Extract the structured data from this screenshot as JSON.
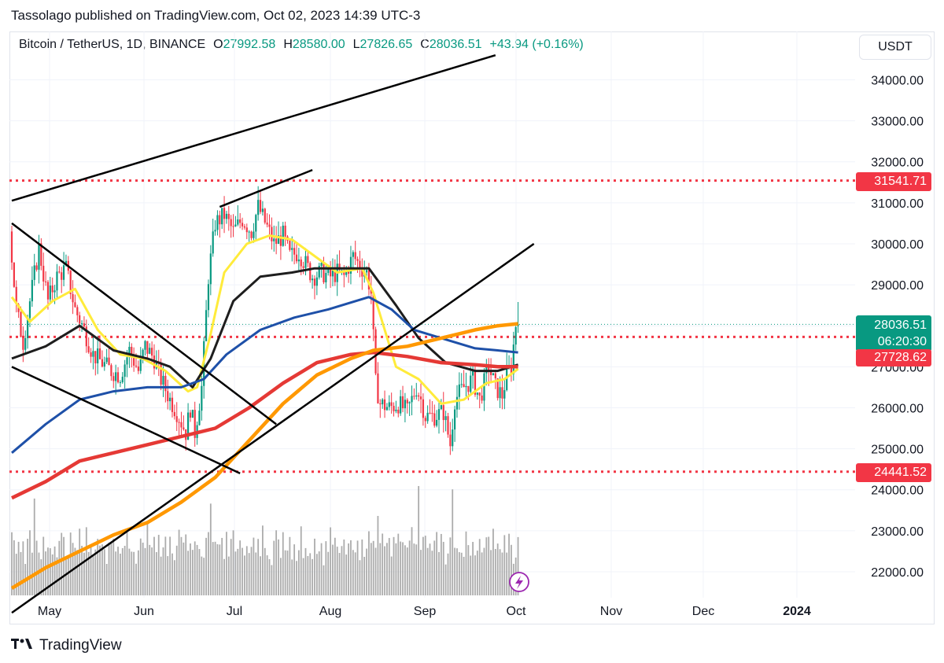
{
  "header": {
    "published_text": "Tassolago published on TradingView.com, Oct 02, 2023 14:39 UTC-3"
  },
  "legend": {
    "symbol": "Bitcoin / TetherUS, 1D, BINANCE",
    "o_label": "O",
    "o_value": "27992.58",
    "h_label": "H",
    "h_value": "28580.00",
    "l_label": "L",
    "l_value": "27826.65",
    "c_label": "C",
    "c_value": "28036.51",
    "change": "+43.94 (+0.16%)"
  },
  "currency_button": "USDT",
  "price_tags": {
    "resistance_upper": "31541.71",
    "last_price": "28036.51",
    "countdown": "06:20:30",
    "level_mid": "27728.62",
    "support_lower": "24441.52"
  },
  "footer": {
    "brand": "TradingView"
  },
  "colors": {
    "up": "#089981",
    "down": "#f23645",
    "volume": "#9e9e9e",
    "ma_yellow": "#ffeb3b",
    "ma_black": "#1e1e1e",
    "ma_blue": "#1e50a8",
    "ma_red": "#e53935",
    "ma_orange": "#ff9800",
    "level_line": "#f23645"
  },
  "chart_data": {
    "type": "candlestick",
    "symbol": "Bitcoin / TetherUS",
    "timeframe": "1D",
    "exchange": "BINANCE",
    "y_ticks": [
      22000,
      23000,
      24000,
      25000,
      26000,
      27000,
      28000,
      29000,
      30000,
      31000,
      32000,
      33000,
      34000
    ],
    "y_tick_labels": [
      "22000.00",
      "23000.00",
      "24000.00",
      "25000.00",
      "26000.00",
      "27000.00",
      "28000.00",
      "29000.00",
      "30000.00",
      "31000.00",
      "32000.00",
      "33000.00",
      "34000.00"
    ],
    "x_tick_labels": [
      "May",
      "Jun",
      "Jul",
      "Aug",
      "Sep",
      "Oct",
      "Nov",
      "Dec",
      "2024"
    ],
    "horizontal_levels": [
      31541.71,
      27728.62,
      24441.52
    ],
    "last_price": 28036.51,
    "price_path": [
      [
        0,
        30300
      ],
      [
        3,
        28400
      ],
      [
        6,
        27600
      ],
      [
        9,
        28600
      ],
      [
        13,
        29900
      ],
      [
        17,
        28600
      ],
      [
        21,
        29200
      ],
      [
        25,
        29400
      ],
      [
        29,
        28400
      ],
      [
        33,
        27900
      ],
      [
        37,
        27300
      ],
      [
        41,
        27100
      ],
      [
        45,
        26900
      ],
      [
        49,
        26800
      ],
      [
        53,
        27400
      ],
      [
        57,
        26900
      ],
      [
        60,
        27500
      ],
      [
        64,
        27200
      ],
      [
        67,
        26700
      ],
      [
        71,
        26200
      ],
      [
        74,
        25900
      ],
      [
        78,
        25400
      ],
      [
        80,
        26000
      ],
      [
        82,
        25400
      ],
      [
        85,
        26500
      ],
      [
        88,
        29200
      ],
      [
        91,
        30500
      ],
      [
        95,
        30700
      ],
      [
        99,
        30300
      ],
      [
        103,
        30600
      ],
      [
        107,
        30300
      ],
      [
        110,
        30900
      ],
      [
        114,
        30400
      ],
      [
        117,
        30000
      ],
      [
        121,
        30200
      ],
      [
        124,
        29700
      ],
      [
        128,
        29800
      ],
      [
        131,
        29500
      ],
      [
        134,
        29200
      ],
      [
        138,
        29300
      ],
      [
        142,
        29200
      ],
      [
        145,
        29300
      ],
      [
        148,
        29200
      ],
      [
        152,
        29700
      ],
      [
        156,
        29400
      ],
      [
        158,
        29300
      ],
      [
        160,
        28800
      ],
      [
        162,
        26600
      ],
      [
        164,
        26100
      ],
      [
        168,
        26000
      ],
      [
        172,
        26100
      ],
      [
        176,
        25900
      ],
      [
        180,
        26500
      ],
      [
        182,
        26200
      ],
      [
        184,
        25800
      ],
      [
        188,
        25800
      ],
      [
        192,
        25900
      ],
      [
        195,
        25100
      ],
      [
        197,
        26200
      ],
      [
        201,
        26500
      ],
      [
        205,
        26700
      ],
      [
        208,
        26200
      ],
      [
        212,
        27000
      ],
      [
        215,
        26500
      ],
      [
        218,
        26300
      ],
      [
        220,
        26800
      ],
      [
        222,
        27000
      ],
      [
        224,
        28036
      ]
    ],
    "volume_pattern": [
      8,
      6,
      5,
      7,
      4,
      6,
      3,
      5,
      8,
      4,
      6,
      5,
      3,
      4,
      7,
      5,
      4,
      6,
      3,
      5,
      4,
      8,
      6,
      5,
      4,
      3,
      6,
      7,
      5,
      4
    ],
    "moving_averages": [
      {
        "color": "yellow",
        "points": [
          [
            0,
            28700
          ],
          [
            8,
            28100
          ],
          [
            18,
            28600
          ],
          [
            28,
            28900
          ],
          [
            38,
            27900
          ],
          [
            48,
            27300
          ],
          [
            58,
            27200
          ],
          [
            68,
            26900
          ],
          [
            78,
            26400
          ],
          [
            82,
            26500
          ],
          [
            88,
            27800
          ],
          [
            94,
            29300
          ],
          [
            104,
            30000
          ],
          [
            114,
            30200
          ],
          [
            124,
            30100
          ],
          [
            134,
            29700
          ],
          [
            144,
            29300
          ],
          [
            155,
            29400
          ],
          [
            160,
            28800
          ],
          [
            170,
            27000
          ],
          [
            180,
            26700
          ],
          [
            190,
            26100
          ],
          [
            200,
            26200
          ],
          [
            210,
            26600
          ],
          [
            218,
            26700
          ],
          [
            224,
            26950
          ]
        ]
      },
      {
        "color": "black",
        "points": [
          [
            0,
            27200
          ],
          [
            15,
            27500
          ],
          [
            30,
            28000
          ],
          [
            45,
            27400
          ],
          [
            60,
            27200
          ],
          [
            70,
            27000
          ],
          [
            80,
            26500
          ],
          [
            88,
            27200
          ],
          [
            98,
            28600
          ],
          [
            110,
            29200
          ],
          [
            124,
            29300
          ],
          [
            134,
            29400
          ],
          [
            144,
            29400
          ],
          [
            158,
            29400
          ],
          [
            170,
            28500
          ],
          [
            180,
            27700
          ],
          [
            192,
            27100
          ],
          [
            205,
            26900
          ],
          [
            215,
            26900
          ],
          [
            224,
            27050
          ]
        ]
      },
      {
        "color": "blue",
        "points": [
          [
            0,
            24900
          ],
          [
            15,
            25600
          ],
          [
            30,
            26200
          ],
          [
            45,
            26400
          ],
          [
            60,
            26500
          ],
          [
            75,
            26500
          ],
          [
            85,
            26700
          ],
          [
            95,
            27300
          ],
          [
            110,
            27900
          ],
          [
            125,
            28200
          ],
          [
            140,
            28400
          ],
          [
            158,
            28700
          ],
          [
            168,
            28400
          ],
          [
            178,
            27900
          ],
          [
            190,
            27700
          ],
          [
            205,
            27450
          ],
          [
            215,
            27400
          ],
          [
            224,
            27350
          ]
        ]
      },
      {
        "color": "red",
        "points": [
          [
            0,
            23800
          ],
          [
            15,
            24200
          ],
          [
            30,
            24700
          ],
          [
            45,
            24900
          ],
          [
            60,
            25100
          ],
          [
            75,
            25300
          ],
          [
            90,
            25500
          ],
          [
            105,
            26000
          ],
          [
            120,
            26600
          ],
          [
            135,
            27100
          ],
          [
            150,
            27300
          ],
          [
            160,
            27350
          ],
          [
            175,
            27250
          ],
          [
            190,
            27100
          ],
          [
            205,
            27050
          ],
          [
            215,
            27000
          ],
          [
            224,
            27000
          ]
        ]
      },
      {
        "color": "orange",
        "points": [
          [
            0,
            21600
          ],
          [
            15,
            22100
          ],
          [
            30,
            22500
          ],
          [
            45,
            22900
          ],
          [
            60,
            23200
          ],
          [
            75,
            23700
          ],
          [
            90,
            24300
          ],
          [
            105,
            25200
          ],
          [
            120,
            26100
          ],
          [
            135,
            26800
          ],
          [
            150,
            27200
          ],
          [
            160,
            27400
          ],
          [
            175,
            27500
          ],
          [
            190,
            27700
          ],
          [
            205,
            27900
          ],
          [
            215,
            28000
          ],
          [
            224,
            28050
          ]
        ]
      }
    ],
    "trendlines_price": [
      {
        "name": "upper-channel",
        "from": [
          0,
          31050
        ],
        "to": [
          214,
          34600
        ]
      },
      {
        "name": "july-top",
        "from": [
          92,
          30900
        ],
        "to": [
          133,
          31800
        ]
      },
      {
        "name": "descending-1",
        "from": [
          0,
          30500
        ],
        "to": [
          117,
          25600
        ]
      },
      {
        "name": "descending-2",
        "from": [
          0,
          27000
        ],
        "to": [
          101,
          24400
        ]
      },
      {
        "name": "ascending",
        "from": [
          0,
          21000
        ],
        "to": [
          231,
          30000
        ]
      }
    ]
  }
}
